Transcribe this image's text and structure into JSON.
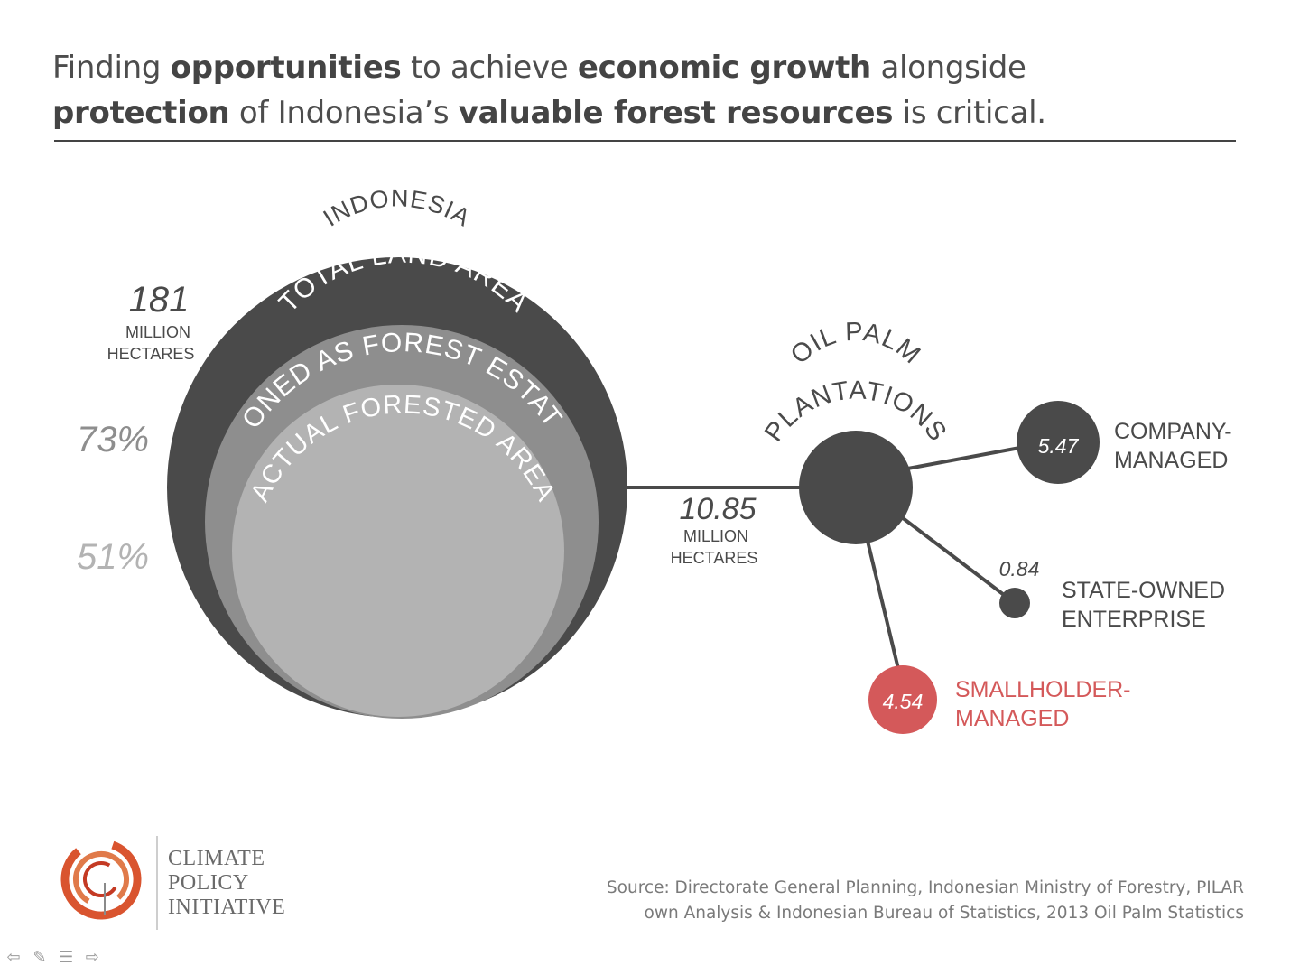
{
  "title": {
    "line1": [
      {
        "text": "Finding ",
        "bold": false
      },
      {
        "text": "opportunities",
        "bold": true
      },
      {
        "text": " to achieve ",
        "bold": false
      },
      {
        "text": "economic growth",
        "bold": true
      },
      {
        "text": " alongside",
        "bold": false
      }
    ],
    "line2": [
      {
        "text": "protection",
        "bold": true
      },
      {
        "text": " of Indonesia’s ",
        "bold": false
      },
      {
        "text": "valuable forest resources",
        "bold": true
      },
      {
        "text": " is critical.",
        "bold": false
      }
    ]
  },
  "nested": {
    "arc_labels": {
      "indonesia": "INDONESIA",
      "total": "TOTAL LAND AREA",
      "zoned": "ZONED AS FOREST ESTATE",
      "actual": "ACTUAL FORESTED AREA"
    },
    "total_value": "181",
    "total_unit_line1": "MILLION",
    "total_unit_line2": "HECTARES",
    "zoned_pct": "73%",
    "actual_pct": "51%",
    "colors": {
      "total": "#4a4a4a",
      "zoned": "#8e8e8e",
      "actual": "#b3b3b3"
    }
  },
  "oil_palm": {
    "label_line1": "OIL PALM",
    "label_line2": "PLANTATIONS",
    "value": "10.85",
    "unit_line1": "MILLION",
    "unit_line2": "HECTARES",
    "color": "#4a4a4a"
  },
  "branches": {
    "company": {
      "value": "5.47",
      "label_line1": "COMPANY-",
      "label_line2": "MANAGED",
      "color": "#4a4a4a"
    },
    "state": {
      "value": "0.84",
      "label_line1": "STATE-OWNED",
      "label_line2": "ENTERPRISE",
      "color": "#4a4a4a"
    },
    "smallholder": {
      "value": "4.54",
      "label_line1": "SMALLHOLDER-",
      "label_line2": "MANAGED",
      "color": "#d4595a"
    }
  },
  "logo": {
    "line1": "CLIMATE",
    "line2": "POLICY",
    "line3": "INITIATIVE",
    "color": "#d9542f"
  },
  "source": {
    "line1": "Source: Directorate General Planning, Indonesian Ministry of Forestry, PILAR",
    "line2": "own Analysis & Indonesian Bureau of Statistics, 2013 Oil Palm Statistics"
  },
  "nav": {
    "prev_icon": "left-arrow-icon",
    "pen_icon": "pen-icon",
    "menu_icon": "menu-icon",
    "next_icon": "right-arrow-icon"
  }
}
